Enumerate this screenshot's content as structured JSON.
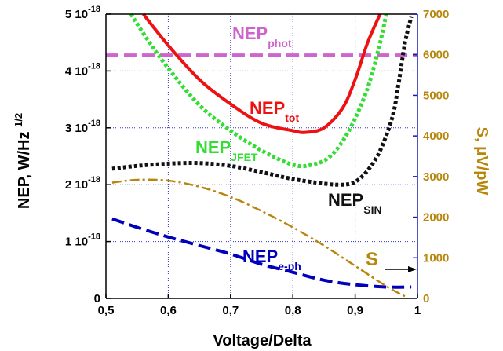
{
  "chart_data": {
    "type": "line",
    "xlabel": "Voltage/Delta",
    "ylabel_left": "NEP, W/Hz",
    "ylabel_left_sup": "1/2",
    "ylabel_right": "S, μV/pW",
    "xlim": [
      0.5,
      1.0
    ],
    "ylim_left": [
      0,
      5e-18
    ],
    "ylim_right": [
      0,
      7000
    ],
    "grid": true,
    "x_ticks": [
      "0,5",
      "0,6",
      "0,7",
      "0,8",
      "0,9",
      "1"
    ],
    "left_ticks": [
      {
        "mantissa": "0",
        "exp": ""
      },
      {
        "mantissa": "1 10",
        "exp": "-18"
      },
      {
        "mantissa": "2 10",
        "exp": "-18"
      },
      {
        "mantissa": "3 10",
        "exp": "-18"
      },
      {
        "mantissa": "4 10",
        "exp": "-18"
      },
      {
        "mantissa": "5 10",
        "exp": "-18"
      }
    ],
    "right_ticks": [
      "0",
      "1000",
      "2000",
      "3000",
      "4000",
      "5000",
      "6000",
      "7000"
    ],
    "series": [
      {
        "name": "NEP_phot",
        "label": "NEP",
        "sub": "phot",
        "axis": "left",
        "color": "#cc66cc",
        "style": "dashed",
        "x": [
          0.5,
          1.0
        ],
        "y": [
          4.28e-18,
          4.28e-18
        ]
      },
      {
        "name": "NEP_tot",
        "label": "NEP",
        "sub": "tot",
        "axis": "left",
        "color": "#ee1111",
        "style": "solid",
        "x": [
          0.56,
          0.6,
          0.65,
          0.7,
          0.75,
          0.8,
          0.82,
          0.85,
          0.88,
          0.9,
          0.92,
          0.94
        ],
        "y": [
          5e-18,
          4.45e-18,
          3.85e-18,
          3.42e-18,
          3.08e-18,
          2.95e-18,
          2.92e-18,
          3e-18,
          3.35e-18,
          3.85e-18,
          4.5e-18,
          5e-18
        ]
      },
      {
        "name": "NEP_JFET",
        "label": "NEP",
        "sub": "JFET",
        "axis": "left",
        "color": "#33dd33",
        "style": "dotted",
        "x": [
          0.54,
          0.57,
          0.6,
          0.65,
          0.7,
          0.75,
          0.8,
          0.83,
          0.86,
          0.89,
          0.92,
          0.94,
          0.95
        ],
        "y": [
          5e-18,
          4.5e-18,
          4.05e-18,
          3.4e-18,
          2.95e-18,
          2.6e-18,
          2.35e-18,
          2.35e-18,
          2.5e-18,
          2.95e-18,
          3.7e-18,
          4.5e-18,
          5e-18
        ]
      },
      {
        "name": "NEP_SIN",
        "label": "NEP",
        "sub": "SIN",
        "axis": "left",
        "color": "#111111",
        "style": "dotted",
        "x": [
          0.51,
          0.55,
          0.6,
          0.65,
          0.7,
          0.75,
          0.8,
          0.85,
          0.88,
          0.9,
          0.92,
          0.94,
          0.96,
          0.97,
          0.98,
          0.99
        ],
        "y": [
          2.28e-18,
          2.33e-18,
          2.37e-18,
          2.38e-18,
          2.33e-18,
          2.22e-18,
          2.1e-18,
          2.02e-18,
          2e-18,
          2.05e-18,
          2.25e-18,
          2.6e-18,
          3.2e-18,
          3.8e-18,
          4.5e-18,
          4.95e-18
        ]
      },
      {
        "name": "NEP_e-ph",
        "label": "NEP",
        "sub": "e-ph",
        "axis": "left",
        "color": "#0000bb",
        "style": "dashed",
        "x": [
          0.51,
          0.55,
          0.6,
          0.65,
          0.7,
          0.75,
          0.8,
          0.85,
          0.9,
          0.95,
          0.99
        ],
        "y": [
          1.4e-18,
          1.25e-18,
          1.08e-18,
          9.3e-19,
          7.8e-19,
          6e-19,
          4.6e-19,
          3.2e-19,
          2.4e-19,
          2e-19,
          2e-19
        ]
      },
      {
        "name": "S",
        "label": "S",
        "sub": "",
        "axis": "right",
        "color": "#b8860b",
        "style": "dashdot",
        "x": [
          0.51,
          0.55,
          0.6,
          0.65,
          0.7,
          0.75,
          0.8,
          0.85,
          0.9,
          0.95,
          0.98
        ],
        "y": [
          2850,
          2920,
          2900,
          2750,
          2500,
          2150,
          1750,
          1300,
          800,
          300,
          50
        ]
      }
    ],
    "colors": {
      "axis_left": "#000000",
      "axis_right": "#b8860b",
      "grid": "#3333cc",
      "frame_right": "#1a1aaa"
    }
  }
}
